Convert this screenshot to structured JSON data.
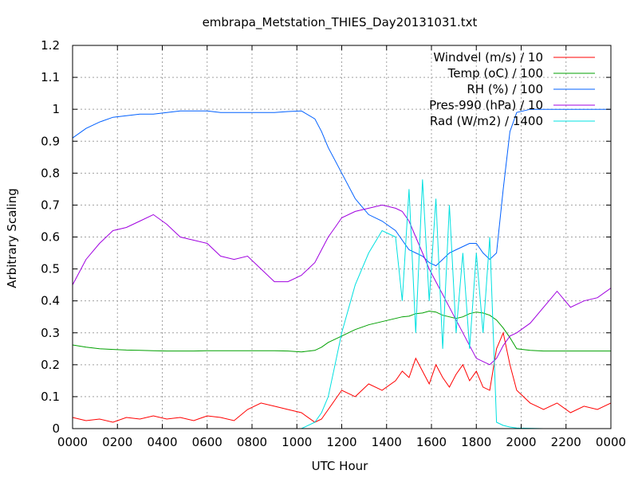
{
  "chart_data": {
    "type": "line",
    "title": "embrapa_Metstation_THIES_Day20131031.txt",
    "xlabel": "UTC Hour",
    "ylabel": "Arbitrary Scaling",
    "xlim": [
      0,
      2400
    ],
    "ylim": [
      0,
      1.2
    ],
    "grid": true,
    "legend_position": "top-right",
    "x_ticks": [
      "0000",
      "0200",
      "0400",
      "0600",
      "0800",
      "1000",
      "1200",
      "1400",
      "1600",
      "1800",
      "2000",
      "2200",
      "0000"
    ],
    "y_ticks": [
      "0",
      "0.1",
      "0.2",
      "0.3",
      "0.4",
      "0.5",
      "0.6",
      "0.7",
      "0.8",
      "0.9",
      "1",
      "1.1",
      "1.2"
    ],
    "series": [
      {
        "name": "Windvel (m/s) / 10",
        "color": "#ff0000",
        "x": [
          0,
          60,
          120,
          180,
          240,
          300,
          360,
          420,
          480,
          540,
          600,
          660,
          720,
          780,
          840,
          900,
          960,
          1020,
          1080,
          1110,
          1140,
          1170,
          1200,
          1260,
          1320,
          1380,
          1440,
          1470,
          1500,
          1530,
          1560,
          1590,
          1620,
          1650,
          1680,
          1710,
          1740,
          1770,
          1800,
          1830,
          1860,
          1890,
          1920,
          1950,
          1980,
          2040,
          2100,
          2160,
          2220,
          2280,
          2340,
          2400
        ],
        "y": [
          0.035,
          0.025,
          0.03,
          0.02,
          0.035,
          0.03,
          0.04,
          0.03,
          0.035,
          0.025,
          0.04,
          0.035,
          0.025,
          0.06,
          0.08,
          0.07,
          0.06,
          0.05,
          0.02,
          0.03,
          0.06,
          0.09,
          0.12,
          0.1,
          0.14,
          0.12,
          0.15,
          0.18,
          0.16,
          0.22,
          0.18,
          0.14,
          0.2,
          0.16,
          0.13,
          0.17,
          0.2,
          0.15,
          0.18,
          0.13,
          0.12,
          0.25,
          0.3,
          0.2,
          0.12,
          0.08,
          0.06,
          0.08,
          0.05,
          0.07,
          0.06,
          0.08
        ]
      },
      {
        "name": "Temp (oC) / 100",
        "color": "#00a000",
        "x": [
          0,
          60,
          120,
          180,
          240,
          300,
          360,
          420,
          480,
          540,
          600,
          660,
          720,
          780,
          840,
          900,
          960,
          1020,
          1080,
          1110,
          1140,
          1170,
          1200,
          1260,
          1320,
          1380,
          1440,
          1470,
          1500,
          1530,
          1560,
          1590,
          1620,
          1650,
          1680,
          1710,
          1740,
          1770,
          1800,
          1830,
          1860,
          1890,
          1920,
          1950,
          1980,
          2040,
          2100,
          2160,
          2220,
          2280,
          2340,
          2400
        ],
        "y": [
          0.262,
          0.255,
          0.25,
          0.248,
          0.246,
          0.245,
          0.244,
          0.243,
          0.243,
          0.243,
          0.244,
          0.244,
          0.244,
          0.244,
          0.244,
          0.244,
          0.243,
          0.24,
          0.245,
          0.255,
          0.27,
          0.28,
          0.29,
          0.31,
          0.325,
          0.335,
          0.345,
          0.35,
          0.352,
          0.36,
          0.362,
          0.368,
          0.365,
          0.355,
          0.35,
          0.345,
          0.35,
          0.36,
          0.365,
          0.362,
          0.355,
          0.34,
          0.315,
          0.285,
          0.25,
          0.245,
          0.243,
          0.243,
          0.243,
          0.243,
          0.243,
          0.243
        ]
      },
      {
        "name": "RH (%) / 100",
        "color": "#0060ff",
        "x": [
          0,
          60,
          120,
          180,
          240,
          300,
          360,
          420,
          480,
          540,
          600,
          660,
          720,
          780,
          840,
          900,
          960,
          1020,
          1080,
          1110,
          1140,
          1170,
          1200,
          1260,
          1320,
          1380,
          1440,
          1470,
          1500,
          1530,
          1560,
          1590,
          1620,
          1650,
          1680,
          1710,
          1740,
          1770,
          1800,
          1830,
          1860,
          1890,
          1920,
          1950,
          1980,
          2040,
          2100,
          2160,
          2220,
          2280,
          2340,
          2400
        ],
        "y": [
          0.91,
          0.94,
          0.96,
          0.975,
          0.98,
          0.985,
          0.985,
          0.99,
          0.995,
          0.995,
          0.995,
          0.99,
          0.99,
          0.99,
          0.99,
          0.99,
          0.993,
          0.995,
          0.97,
          0.93,
          0.88,
          0.84,
          0.8,
          0.72,
          0.67,
          0.65,
          0.62,
          0.59,
          0.56,
          0.55,
          0.54,
          0.52,
          0.51,
          0.53,
          0.55,
          0.56,
          0.57,
          0.58,
          0.58,
          0.55,
          0.53,
          0.55,
          0.75,
          0.93,
          0.99,
          1.0,
          1.0,
          1.0,
          1.0,
          1.0,
          1.0,
          1.0
        ]
      },
      {
        "name": "Pres-990 (hPa) / 10",
        "color": "#a000e0",
        "x": [
          0,
          60,
          120,
          180,
          240,
          300,
          360,
          420,
          480,
          540,
          600,
          660,
          720,
          780,
          840,
          900,
          960,
          1020,
          1080,
          1110,
          1140,
          1170,
          1200,
          1260,
          1320,
          1380,
          1440,
          1470,
          1500,
          1530,
          1560,
          1590,
          1620,
          1650,
          1680,
          1710,
          1740,
          1770,
          1800,
          1830,
          1860,
          1890,
          1920,
          1950,
          1980,
          2040,
          2100,
          2160,
          2220,
          2280,
          2340,
          2400
        ],
        "y": [
          0.45,
          0.53,
          0.58,
          0.62,
          0.63,
          0.65,
          0.67,
          0.64,
          0.6,
          0.59,
          0.58,
          0.54,
          0.53,
          0.54,
          0.5,
          0.46,
          0.46,
          0.48,
          0.52,
          0.56,
          0.6,
          0.63,
          0.66,
          0.68,
          0.69,
          0.7,
          0.69,
          0.68,
          0.65,
          0.6,
          0.55,
          0.5,
          0.46,
          0.42,
          0.38,
          0.34,
          0.3,
          0.26,
          0.22,
          0.21,
          0.2,
          0.22,
          0.26,
          0.29,
          0.3,
          0.33,
          0.38,
          0.43,
          0.38,
          0.4,
          0.41,
          0.44
        ]
      },
      {
        "name": "Rad (W/m2) / 1400",
        "color": "#00e0e0",
        "x": [
          0,
          60,
          120,
          180,
          240,
          300,
          360,
          420,
          480,
          540,
          600,
          660,
          720,
          780,
          840,
          900,
          960,
          1020,
          1080,
          1110,
          1140,
          1170,
          1200,
          1260,
          1320,
          1380,
          1440,
          1470,
          1500,
          1530,
          1560,
          1590,
          1620,
          1650,
          1680,
          1710,
          1740,
          1770,
          1800,
          1830,
          1860,
          1890,
          1920,
          1950,
          1980,
          2040,
          2100,
          2160,
          2220,
          2280,
          2340,
          2400
        ],
        "y": [
          0,
          0,
          0,
          0,
          0,
          0,
          0,
          0,
          0,
          0,
          0,
          0,
          0,
          0,
          0,
          0,
          0,
          0,
          0.02,
          0.05,
          0.1,
          0.2,
          0.3,
          0.45,
          0.55,
          0.62,
          0.6,
          0.4,
          0.75,
          0.3,
          0.78,
          0.4,
          0.72,
          0.25,
          0.7,
          0.3,
          0.55,
          0.25,
          0.55,
          0.3,
          0.6,
          0.02,
          0.01,
          0.005,
          0.002,
          0.001,
          0,
          0,
          0,
          0,
          0,
          0
        ]
      }
    ]
  }
}
